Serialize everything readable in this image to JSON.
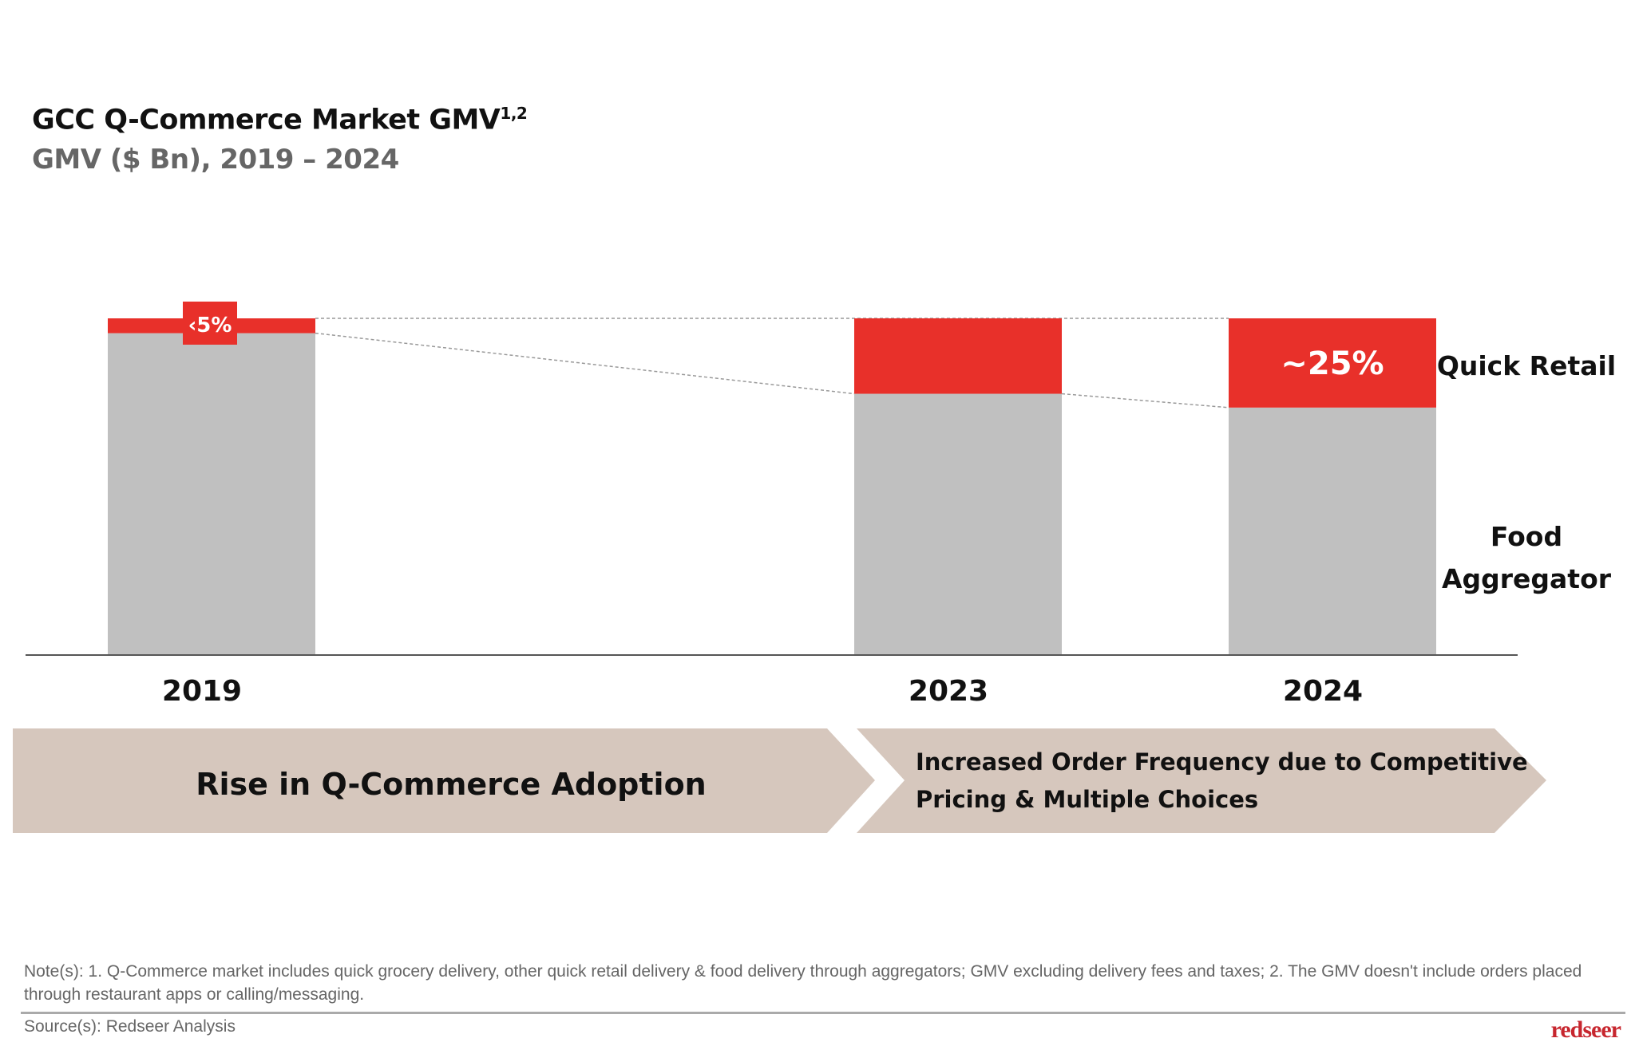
{
  "header": {
    "title": "GCC Q-Commerce Market GMV",
    "title_superscript": "1,2",
    "subtitle": "GMV ($ Bn), 2019 – 2024"
  },
  "chart_data": {
    "type": "bar",
    "stacked": true,
    "normalized": true,
    "categories": [
      "2019",
      "2023",
      "2024"
    ],
    "series": [
      {
        "name": "Food Aggregator",
        "values": [
          95.6,
          77.6,
          73.5
        ],
        "color": "#c0c0c0"
      },
      {
        "name": "Quick Retail",
        "values": [
          4.4,
          22.4,
          26.5
        ],
        "color": "#e8302a"
      }
    ],
    "data_labels": {
      "2019": "‹5%",
      "2024": "~25%"
    },
    "ylim": [
      0,
      100
    ],
    "grid": false
  },
  "phases": [
    {
      "label": "Rise in Q-Commerce Adoption"
    },
    {
      "label_line1": "Increased Order Frequency due to Competitive",
      "label_line2": "Pricing & Multiple Choices"
    }
  ],
  "footer": {
    "note": "Note(s): 1. Q-Commerce market includes quick grocery delivery, other quick retail delivery & food delivery through aggregators; GMV excluding delivery fees and taxes; 2. The GMV doesn't include orders placed through restaurant apps or calling/messaging.",
    "source": "Source(s): Redseer Analysis",
    "logo": "redseer"
  },
  "colors": {
    "accent": "#e8302a",
    "bar_grey": "#c0c0c0",
    "arrow": "#d6c7bd"
  }
}
